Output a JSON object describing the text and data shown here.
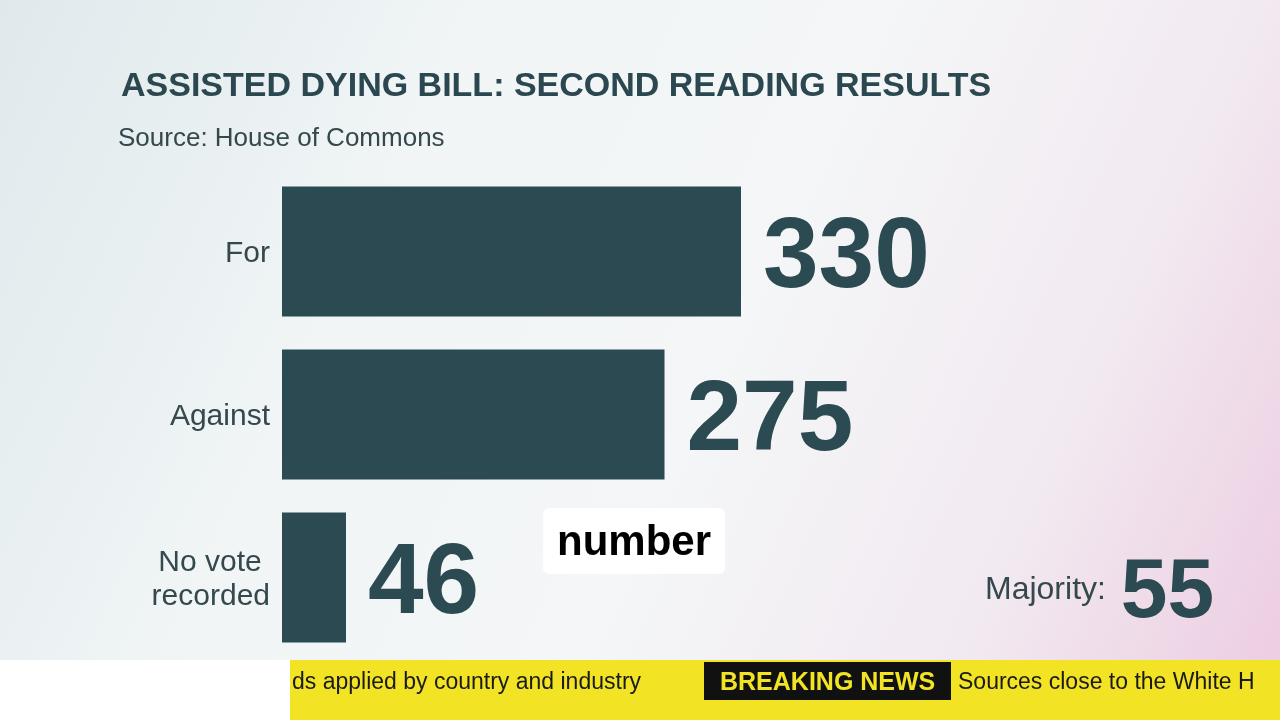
{
  "chart_data": {
    "type": "bar",
    "orientation": "horizontal",
    "title": "ASSISTED DYING BILL: SECOND READING RESULTS",
    "categories": [
      "For",
      "Against",
      "No vote recorded"
    ],
    "values": [
      330,
      275,
      46
    ],
    "color": "#2b4a52",
    "data_labels": true,
    "tick_labels": "y",
    "annotations": [
      "Source: House of Commons",
      "Majority: 55",
      "number",
      "ds applied by country and industry",
      "BREAKING NEWS",
      "Sources close to the White H"
    ]
  }
}
